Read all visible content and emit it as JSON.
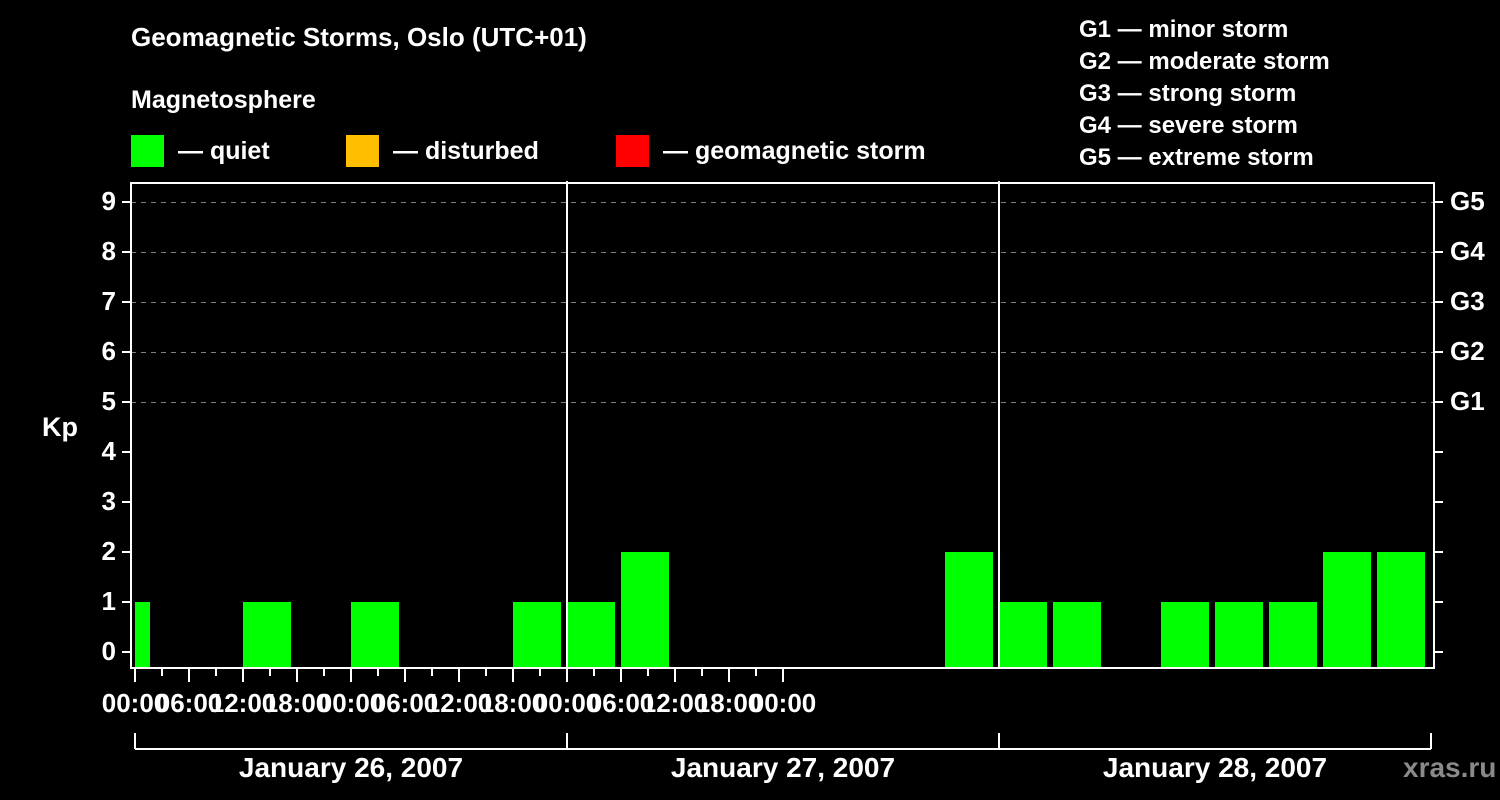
{
  "header": {
    "title": "Geomagnetic Storms, Oslo (UTC+01)",
    "subtitle": "Magnetosphere"
  },
  "legend": [
    {
      "label": "— quiet",
      "color": "#00ff00"
    },
    {
      "label": "— disturbed",
      "color": "#ffbf00"
    },
    {
      "label": "— geomagnetic storm",
      "color": "#ff0000"
    }
  ],
  "storm_scale": [
    "G1 — minor storm",
    "G2 — moderate storm",
    "G3 — strong storm",
    "G4 — severe storm",
    "G5 — extreme storm"
  ],
  "axes": {
    "ylabel": "Kp",
    "yticks": [
      "0",
      "1",
      "2",
      "3",
      "4",
      "5",
      "6",
      "7",
      "8",
      "9"
    ],
    "gticks": [
      "G1",
      "G2",
      "G3",
      "G4",
      "G5"
    ],
    "xticks": [
      "00:00",
      "06:00",
      "12:00",
      "18:00",
      "00:00",
      "06:00",
      "12:00",
      "18:00",
      "00:00",
      "06:00",
      "12:00",
      "18:00",
      "00:00"
    ],
    "days": [
      "January 26, 2007",
      "January 27, 2007",
      "January 28, 2007"
    ]
  },
  "watermark": "xras.ru",
  "colors": {
    "quiet": "#00ff00",
    "disturbed": "#ffbf00",
    "storm": "#ff0000",
    "grid": "#808080",
    "axis": "#ffffff"
  },
  "chart_data": {
    "type": "bar",
    "title": "Geomagnetic Storms, Oslo (UTC+01)",
    "subtitle": "Magnetosphere",
    "xlabel": "",
    "ylabel": "Kp",
    "ylim": [
      0,
      9
    ],
    "secondary_y_labels": {
      "5": "G1",
      "6": "G2",
      "7": "G3",
      "8": "G4",
      "9": "G5"
    },
    "grid": "dashed horizontal at Kp 5-9",
    "legend": [
      "quiet",
      "disturbed",
      "geomagnetic storm"
    ],
    "legend_position": "top",
    "interval_hours": 3,
    "categories": [
      "Jan 26 00:00",
      "Jan 26 03:00",
      "Jan 26 06:00",
      "Jan 26 09:00",
      "Jan 26 12:00",
      "Jan 26 15:00",
      "Jan 26 18:00",
      "Jan 26 21:00",
      "Jan 27 00:00",
      "Jan 27 03:00",
      "Jan 27 06:00",
      "Jan 27 09:00",
      "Jan 27 12:00",
      "Jan 27 15:00",
      "Jan 27 18:00",
      "Jan 27 21:00",
      "Jan 28 00:00",
      "Jan 28 03:00",
      "Jan 28 06:00",
      "Jan 28 09:00",
      "Jan 28 12:00",
      "Jan 28 15:00",
      "Jan 28 18:00",
      "Jan 28 21:00"
    ],
    "series": [
      {
        "name": "Kp",
        "values": [
          1,
          0,
          1,
          0,
          1,
          0,
          0,
          1,
          1,
          2,
          0,
          0,
          0,
          0,
          0,
          2,
          1,
          1,
          0,
          1,
          1,
          1,
          2,
          2
        ],
        "status": [
          "quiet",
          "quiet",
          "quiet",
          "quiet",
          "quiet",
          "quiet",
          "quiet",
          "quiet",
          "quiet",
          "quiet",
          "quiet",
          "quiet",
          "quiet",
          "quiet",
          "quiet",
          "quiet",
          "quiet",
          "quiet",
          "quiet",
          "quiet",
          "quiet",
          "quiet",
          "quiet",
          "quiet"
        ]
      }
    ]
  }
}
